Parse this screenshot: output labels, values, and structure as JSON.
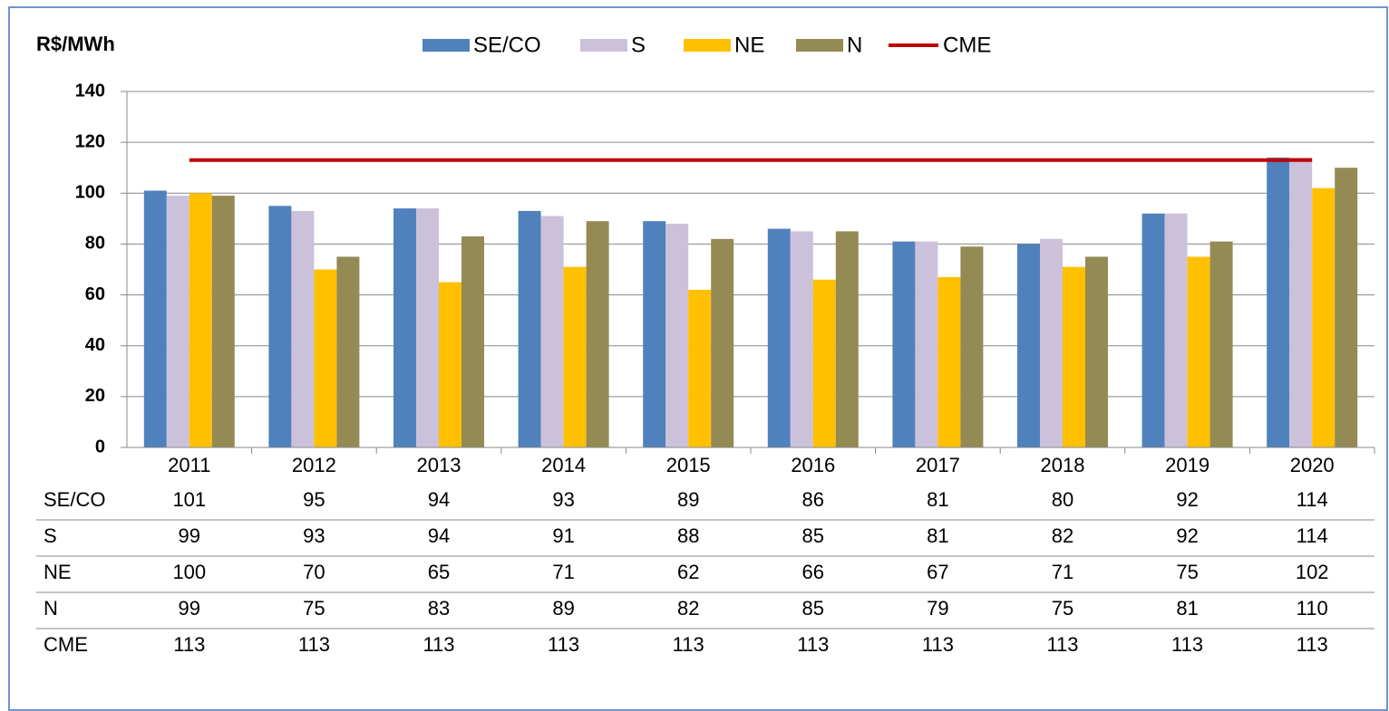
{
  "chart_data": {
    "type": "bar",
    "ylabel": "R$/MWh",
    "categories": [
      "2011",
      "2012",
      "2013",
      "2014",
      "2015",
      "2016",
      "2017",
      "2018",
      "2019",
      "2020"
    ],
    "series": [
      {
        "name": "SE/CO",
        "color": "#4f81bd",
        "values": [
          101,
          95,
          94,
          93,
          89,
          86,
          81,
          80,
          92,
          114
        ]
      },
      {
        "name": "S",
        "color": "#ccc1da",
        "values": [
          99,
          93,
          94,
          91,
          88,
          85,
          81,
          82,
          92,
          114
        ]
      },
      {
        "name": "NE",
        "color": "#ffc000",
        "values": [
          100,
          70,
          65,
          71,
          62,
          66,
          67,
          71,
          75,
          102
        ]
      },
      {
        "name": "N",
        "color": "#948a54",
        "values": [
          99,
          75,
          83,
          89,
          82,
          85,
          79,
          75,
          81,
          110
        ]
      },
      {
        "name": "CME",
        "color": "#c00000",
        "type": "line",
        "values": [
          113,
          113,
          113,
          113,
          113,
          113,
          113,
          113,
          113,
          113
        ]
      }
    ],
    "ylim": [
      0,
      140
    ],
    "yticks": [
      0,
      20,
      40,
      60,
      80,
      100,
      120,
      140
    ],
    "grid": true,
    "legend": "top",
    "data_table": true
  }
}
